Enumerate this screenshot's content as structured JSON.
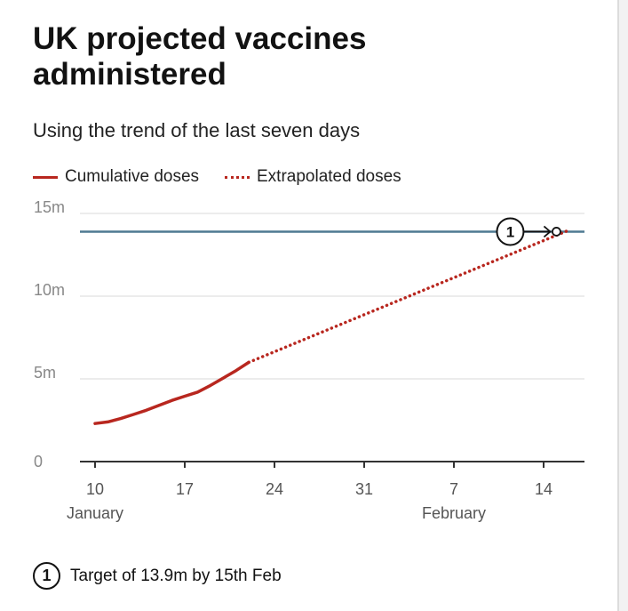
{
  "title": "UK projected vaccines administered",
  "subtitle": "Using the trend of the last seven days",
  "legend": {
    "cumulative": "Cumulative doses",
    "extrapolated": "Extrapolated doses"
  },
  "footnote": {
    "badge": "1",
    "text": "Target of 13.9m by 15th Feb"
  },
  "colors": {
    "series": "#b8271f",
    "target": "#4f7a92",
    "grid": "#e6e6e6",
    "axis": "#333333",
    "tick_label": "#888888"
  },
  "chart_data": {
    "type": "line",
    "title": "UK projected vaccines administered",
    "subtitle": "Using the trend of the last seven days",
    "xlabel": "",
    "ylabel": "",
    "x_unit": "day",
    "xlim": [
      "2021-01-10",
      "2021-02-16"
    ],
    "ylim": [
      0,
      15
    ],
    "y_ticks": [
      {
        "value": 0,
        "label": "0"
      },
      {
        "value": 5,
        "label": "5m"
      },
      {
        "value": 10,
        "label": "10m"
      },
      {
        "value": 15,
        "label": "15m"
      }
    ],
    "x_ticks": [
      {
        "date": "2021-01-10",
        "label": "10",
        "month": "January"
      },
      {
        "date": "2021-01-17",
        "label": "17",
        "month": ""
      },
      {
        "date": "2021-01-24",
        "label": "24",
        "month": ""
      },
      {
        "date": "2021-01-31",
        "label": "31",
        "month": ""
      },
      {
        "date": "2021-02-07",
        "label": "7",
        "month": "February"
      },
      {
        "date": "2021-02-14",
        "label": "14",
        "month": ""
      }
    ],
    "grid": true,
    "legend_position": "top-left",
    "series": [
      {
        "name": "Cumulative doses",
        "style": "solid",
        "points": [
          {
            "x": "2021-01-10",
            "y": 2.3
          },
          {
            "x": "2021-01-11",
            "y": 2.4
          },
          {
            "x": "2021-01-12",
            "y": 2.6
          },
          {
            "x": "2021-01-13",
            "y": 2.85
          },
          {
            "x": "2021-01-14",
            "y": 3.1
          },
          {
            "x": "2021-01-15",
            "y": 3.4
          },
          {
            "x": "2021-01-16",
            "y": 3.7
          },
          {
            "x": "2021-01-17",
            "y": 3.95
          },
          {
            "x": "2021-01-18",
            "y": 4.2
          },
          {
            "x": "2021-01-19",
            "y": 4.6
          },
          {
            "x": "2021-01-20",
            "y": 5.05
          },
          {
            "x": "2021-01-21",
            "y": 5.5
          },
          {
            "x": "2021-01-22",
            "y": 6.0
          }
        ]
      },
      {
        "name": "Extrapolated doses",
        "style": "dotted",
        "points": [
          {
            "x": "2021-01-22",
            "y": 6.0
          },
          {
            "x": "2021-02-16",
            "y": 14.0
          }
        ]
      }
    ],
    "reference_lines": [
      {
        "axis": "y",
        "value": 13.9,
        "badge": "1"
      }
    ],
    "annotations": [
      {
        "badge": "1",
        "target_date": "2021-02-15",
        "target_value": 13.9
      }
    ]
  }
}
